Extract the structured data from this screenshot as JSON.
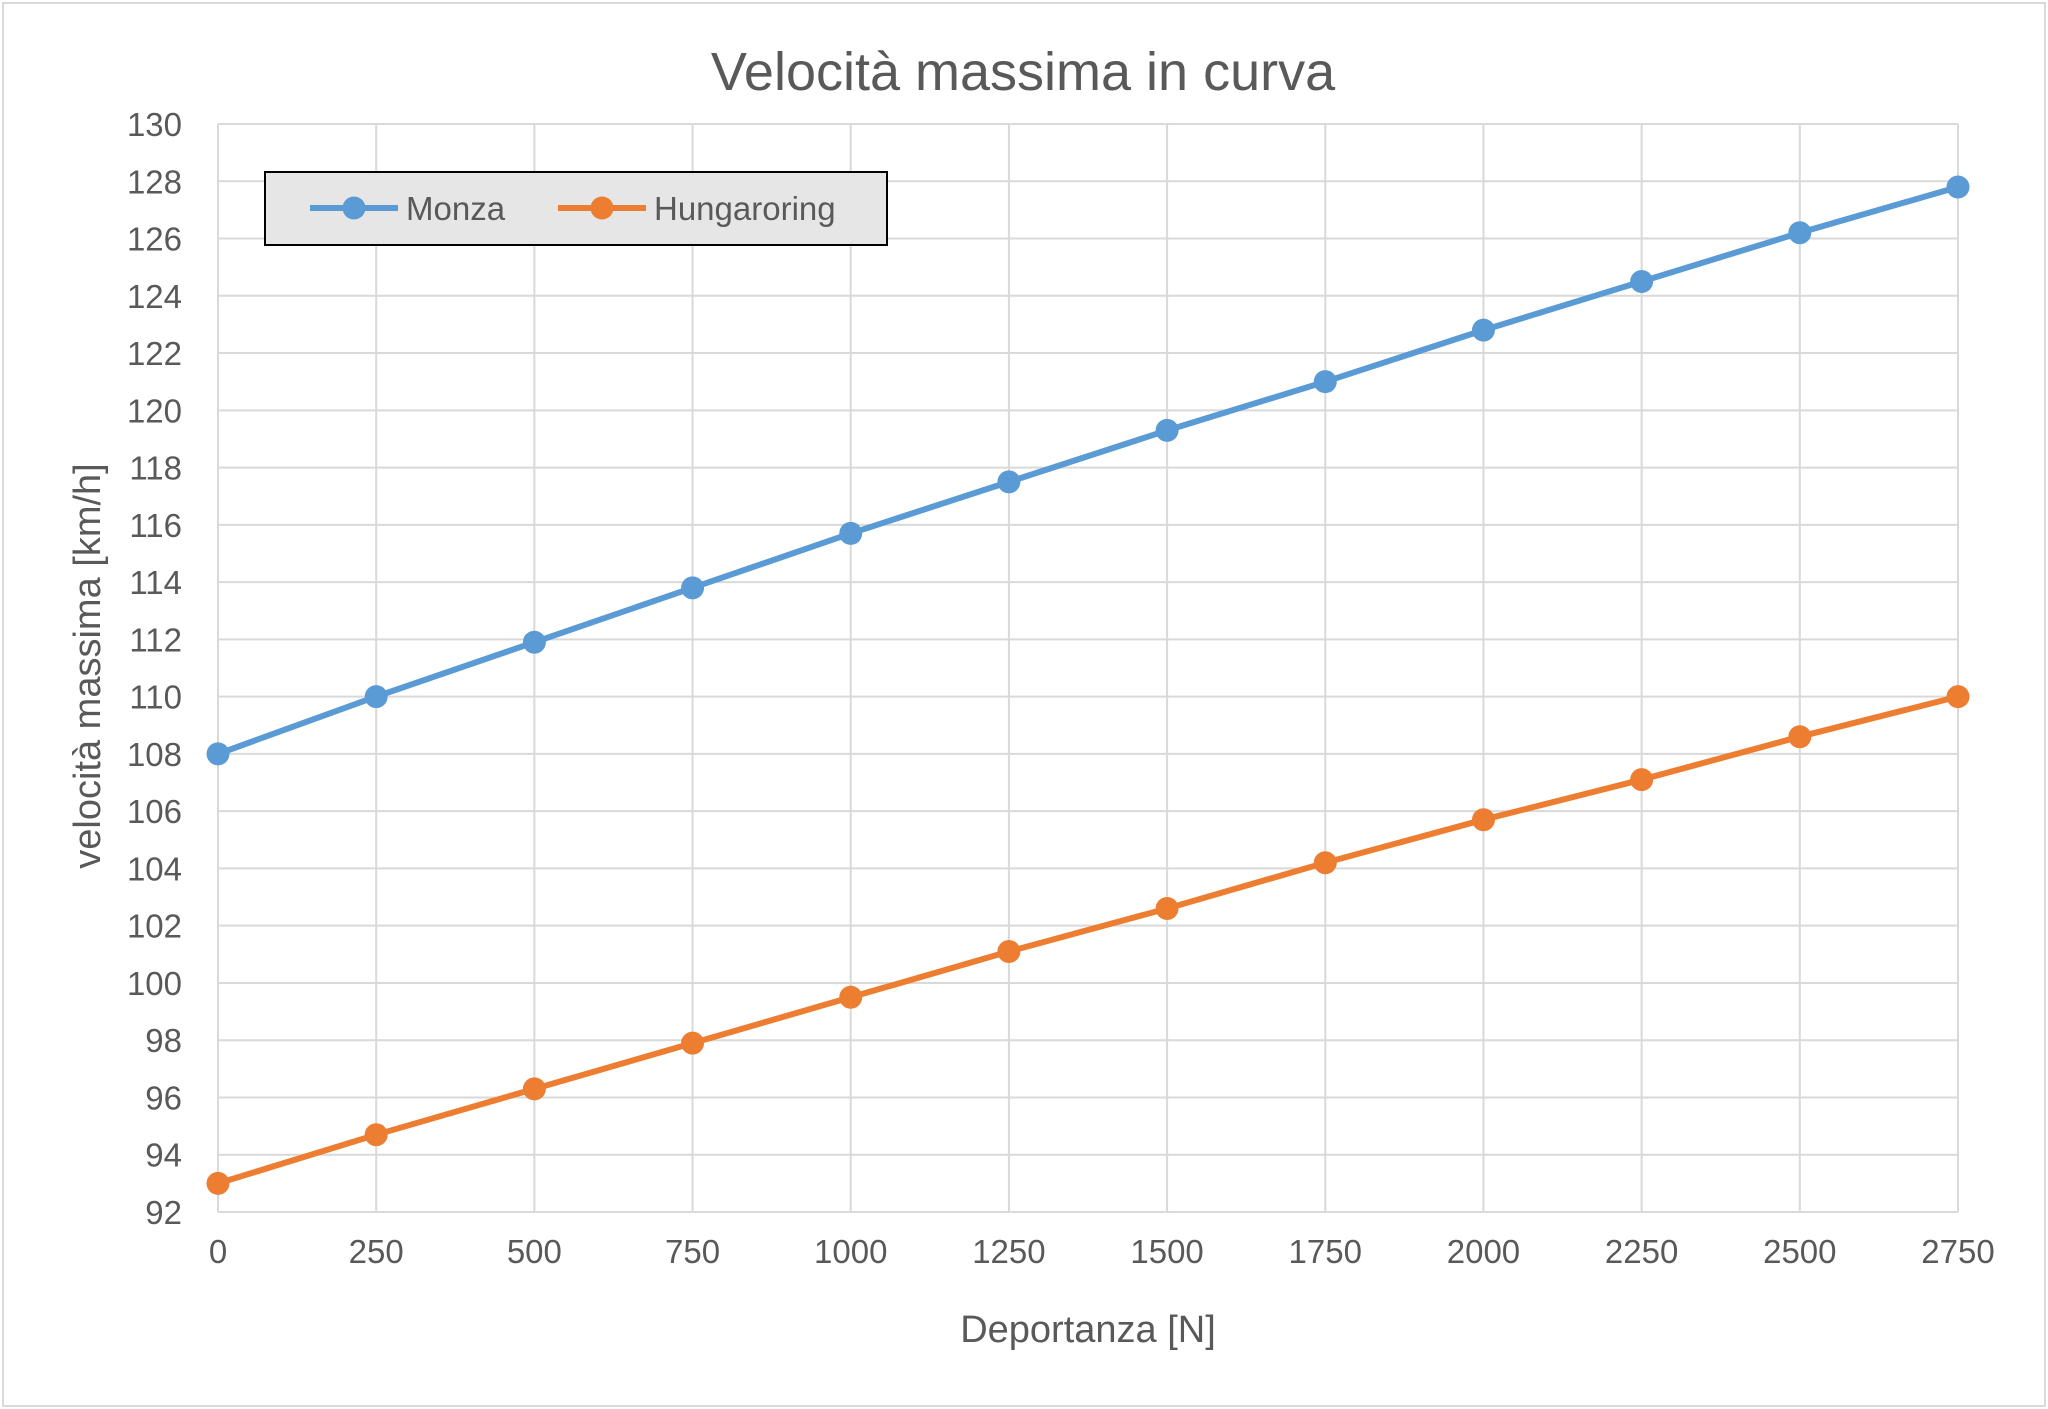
{
  "chart_data": {
    "type": "line",
    "title": "Velocità massima in curva",
    "xlabel": "Deportanza [N]",
    "ylabel": "velocità massima [km/h]",
    "x": [
      0,
      250,
      500,
      750,
      1000,
      1250,
      1500,
      1750,
      2000,
      2250,
      2500,
      2750
    ],
    "xlim": [
      0,
      2750
    ],
    "ylim": [
      92,
      130
    ],
    "y_tick_step": 2,
    "grid": true,
    "legend_position": "top-left",
    "series": [
      {
        "name": "Monza",
        "color": "#5b9bd5",
        "values": [
          108.0,
          110.0,
          111.9,
          113.8,
          115.7,
          117.5,
          119.3,
          121.0,
          122.8,
          124.5,
          126.2,
          127.8
        ]
      },
      {
        "name": "Hungaroring",
        "color": "#ed7d31",
        "values": [
          93.0,
          94.7,
          96.3,
          97.9,
          99.5,
          101.1,
          102.6,
          104.2,
          105.7,
          107.1,
          108.6,
          110.0
        ]
      }
    ]
  }
}
